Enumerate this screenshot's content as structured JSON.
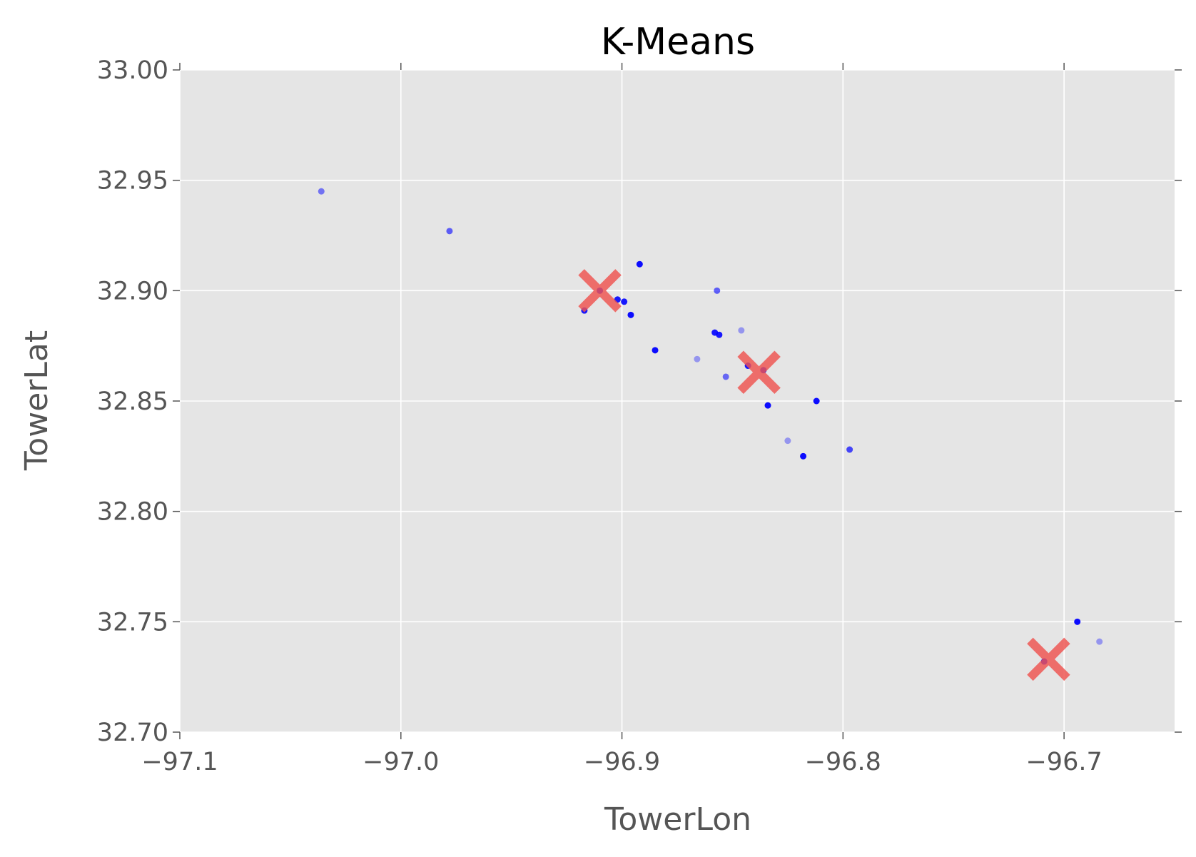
{
  "chart_data": {
    "type": "scatter",
    "title": "K-Means",
    "xlabel": "TowerLon",
    "ylabel": "TowerLat",
    "xlim": [
      -97.1,
      -96.65
    ],
    "ylim": [
      32.7,
      33.0
    ],
    "xticks": [
      -97.1,
      -97.0,
      -96.9,
      -96.8,
      -96.7
    ],
    "xtick_labels": [
      "−97.1",
      "−97.0",
      "−96.9",
      "−96.8",
      "−96.7"
    ],
    "yticks": [
      32.7,
      32.75,
      32.8,
      32.85,
      32.9,
      32.95,
      33.0
    ],
    "ytick_labels": [
      "32.70",
      "32.75",
      "32.80",
      "32.85",
      "32.90",
      "32.95",
      "33.00"
    ],
    "grid": true,
    "background_color": "#e5e5e5",
    "series": [
      {
        "marker": "circle",
        "color": "#0000ff",
        "points": [
          {
            "x": -97.036,
            "y": 32.945,
            "alpha": 0.5
          },
          {
            "x": -96.978,
            "y": 32.927,
            "alpha": 0.6
          },
          {
            "x": -96.892,
            "y": 32.912,
            "alpha": 0.95
          },
          {
            "x": -96.91,
            "y": 32.9,
            "alpha": 0.9
          },
          {
            "x": -96.902,
            "y": 32.896,
            "alpha": 0.9
          },
          {
            "x": -96.899,
            "y": 32.895,
            "alpha": 0.9
          },
          {
            "x": -96.917,
            "y": 32.891,
            "alpha": 0.9
          },
          {
            "x": -96.896,
            "y": 32.889,
            "alpha": 0.95
          },
          {
            "x": -96.857,
            "y": 32.9,
            "alpha": 0.6
          },
          {
            "x": -96.858,
            "y": 32.881,
            "alpha": 0.9
          },
          {
            "x": -96.856,
            "y": 32.88,
            "alpha": 0.9
          },
          {
            "x": -96.846,
            "y": 32.882,
            "alpha": 0.35
          },
          {
            "x": -96.885,
            "y": 32.873,
            "alpha": 0.95
          },
          {
            "x": -96.866,
            "y": 32.869,
            "alpha": 0.35
          },
          {
            "x": -96.843,
            "y": 32.866,
            "alpha": 0.9
          },
          {
            "x": -96.836,
            "y": 32.864,
            "alpha": 0.9
          },
          {
            "x": -96.853,
            "y": 32.861,
            "alpha": 0.55
          },
          {
            "x": -96.812,
            "y": 32.85,
            "alpha": 0.95
          },
          {
            "x": -96.834,
            "y": 32.848,
            "alpha": 0.95
          },
          {
            "x": -96.825,
            "y": 32.832,
            "alpha": 0.35
          },
          {
            "x": -96.797,
            "y": 32.828,
            "alpha": 0.7
          },
          {
            "x": -96.818,
            "y": 32.825,
            "alpha": 0.95
          },
          {
            "x": -96.694,
            "y": 32.75,
            "alpha": 0.95
          },
          {
            "x": -96.684,
            "y": 32.741,
            "alpha": 0.35
          },
          {
            "x": -96.709,
            "y": 32.732,
            "alpha": 0.9
          }
        ]
      },
      {
        "marker": "x",
        "color": "#ef5350",
        "points": [
          {
            "x": -96.91,
            "y": 32.9
          },
          {
            "x": -96.838,
            "y": 32.863
          },
          {
            "x": -96.707,
            "y": 32.733
          }
        ]
      }
    ]
  }
}
